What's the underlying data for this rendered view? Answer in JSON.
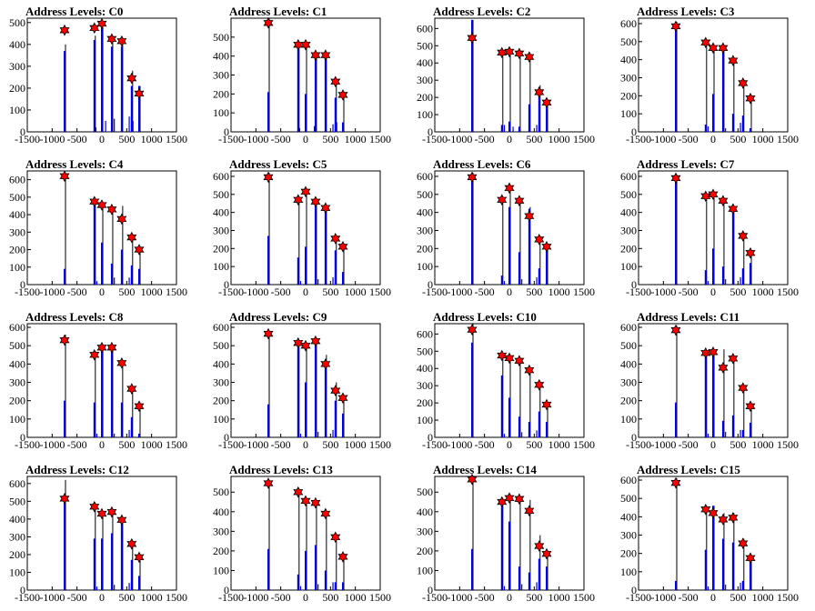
{
  "chart_data": [
    {
      "type": "bar",
      "title": "Address Levels: C0",
      "xlim": [
        -1500,
        1500
      ],
      "ylim": [
        0,
        520
      ],
      "yticks": [
        0,
        100,
        200,
        300,
        400,
        500
      ],
      "xticks": [
        -1500,
        -1000,
        -500,
        0,
        500,
        1000,
        1500
      ],
      "x": [
        -750,
        -150,
        0,
        200,
        400,
        600,
        750
      ],
      "values": [
        370,
        420,
        490,
        390,
        390,
        210,
        210
      ],
      "black_peaks": [
        400,
        440,
        500,
        420,
        410,
        280,
        210
      ],
      "star_values": [
        465,
        475,
        495,
        425,
        415,
        245,
        175
      ],
      "minor": [
        {
          "x": -120,
          "value": 20
        },
        {
          "x": 75,
          "value": 50
        },
        {
          "x": 250,
          "value": 60
        },
        {
          "x": 550,
          "value": 70
        },
        {
          "x": 625,
          "value": 50
        }
      ]
    },
    {
      "type": "bar",
      "title": "Address Levels: C1",
      "xlim": [
        -1500,
        1500
      ],
      "ylim": [
        0,
        600
      ],
      "yticks": [
        0,
        100,
        200,
        300,
        400,
        500
      ],
      "xticks": [
        -1500,
        -1000,
        -500,
        0,
        500,
        1000,
        1500
      ],
      "x": [
        -750,
        -150,
        0,
        200,
        400,
        600,
        750
      ],
      "values": [
        210,
        460,
        200,
        400,
        400,
        180,
        50
      ],
      "black_peaks": [
        600,
        470,
        470,
        420,
        420,
        280,
        200
      ],
      "star_values": [
        575,
        460,
        460,
        405,
        405,
        265,
        195
      ],
      "minor": [
        {
          "x": -120,
          "value": 20
        },
        {
          "x": 175,
          "value": 30
        },
        {
          "x": 550,
          "value": 40
        },
        {
          "x": 625,
          "value": 50
        }
      ]
    },
    {
      "type": "bar",
      "title": "Address Levels: C2",
      "xlim": [
        -1500,
        1500
      ],
      "ylim": [
        0,
        660
      ],
      "yticks": [
        0,
        100,
        200,
        300,
        400,
        500,
        600
      ],
      "xticks": [
        -1500,
        -1000,
        -500,
        0,
        500,
        1000,
        1500
      ],
      "x": [
        -750,
        -150,
        0,
        200,
        400,
        600,
        750
      ],
      "values": [
        650,
        40,
        60,
        30,
        160,
        260,
        160
      ],
      "black_peaks": [
        650,
        460,
        470,
        470,
        450,
        270,
        170
      ],
      "star_values": [
        545,
        460,
        465,
        455,
        435,
        230,
        170
      ],
      "minor": [
        {
          "x": -100,
          "value": 40
        },
        {
          "x": 75,
          "value": 30
        },
        {
          "x": 550,
          "value": 40
        }
      ]
    },
    {
      "type": "bar",
      "title": "Address Levels: C3",
      "xlim": [
        -1500,
        1500
      ],
      "ylim": [
        0,
        630
      ],
      "yticks": [
        0,
        100,
        200,
        300,
        400,
        500,
        600
      ],
      "xticks": [
        -1500,
        -1000,
        -500,
        0,
        500,
        1000,
        1500
      ],
      "x": [
        -750,
        -150,
        0,
        200,
        400,
        600,
        750
      ],
      "values": [
        610,
        40,
        210,
        440,
        100,
        90,
        20
      ],
      "black_peaks": [
        610,
        500,
        480,
        470,
        410,
        290,
        200
      ],
      "star_values": [
        585,
        495,
        465,
        465,
        395,
        270,
        185
      ],
      "minor": [
        {
          "x": -100,
          "value": 30
        },
        {
          "x": 250,
          "value": 20
        },
        {
          "x": 550,
          "value": 50
        }
      ]
    },
    {
      "type": "bar",
      "title": "Address Levels: C4",
      "xlim": [
        -1500,
        1500
      ],
      "ylim": [
        0,
        650
      ],
      "yticks": [
        0,
        100,
        200,
        300,
        400,
        500,
        600
      ],
      "xticks": [
        -1500,
        -1000,
        -500,
        0,
        500,
        1000,
        1500
      ],
      "x": [
        -750,
        -150,
        0,
        200,
        400,
        600,
        750
      ],
      "values": [
        90,
        450,
        240,
        120,
        200,
        110,
        90
      ],
      "black_peaks": [
        640,
        480,
        460,
        440,
        450,
        290,
        210
      ],
      "star_values": [
        620,
        475,
        455,
        430,
        375,
        270,
        200
      ],
      "minor": [
        {
          "x": -100,
          "value": 20
        },
        {
          "x": 250,
          "value": 40
        },
        {
          "x": 550,
          "value": 40
        }
      ]
    },
    {
      "type": "bar",
      "title": "Address Levels: C5",
      "xlim": [
        -1500,
        1500
      ],
      "ylim": [
        0,
        630
      ],
      "yticks": [
        0,
        100,
        200,
        300,
        400,
        500,
        600
      ],
      "xticks": [
        -1500,
        -1000,
        -500,
        0,
        500,
        1000,
        1500
      ],
      "x": [
        -750,
        -150,
        0,
        200,
        400,
        600,
        750
      ],
      "values": [
        270,
        150,
        210,
        450,
        410,
        190,
        70
      ],
      "black_peaks": [
        620,
        480,
        520,
        470,
        430,
        270,
        210
      ],
      "star_values": [
        595,
        470,
        515,
        460,
        425,
        255,
        210
      ],
      "minor": [
        {
          "x": -100,
          "value": 20
        },
        {
          "x": 250,
          "value": 30
        },
        {
          "x": 550,
          "value": 40
        }
      ]
    },
    {
      "type": "bar",
      "title": "Address Levels: C6",
      "xlim": [
        -1500,
        1500
      ],
      "ylim": [
        0,
        630
      ],
      "yticks": [
        0,
        100,
        200,
        300,
        400,
        500,
        600
      ],
      "xticks": [
        -1500,
        -1000,
        -500,
        0,
        500,
        1000,
        1500
      ],
      "x": [
        -750,
        -150,
        0,
        200,
        400,
        600,
        750
      ],
      "values": [
        600,
        50,
        430,
        180,
        420,
        90,
        200
      ],
      "black_peaks": [
        620,
        480,
        540,
        470,
        430,
        270,
        210
      ],
      "star_values": [
        595,
        470,
        535,
        465,
        380,
        250,
        210
      ],
      "minor": [
        {
          "x": -100,
          "value": 20
        },
        {
          "x": 250,
          "value": 30
        },
        {
          "x": 550,
          "value": 40
        }
      ]
    },
    {
      "type": "bar",
      "title": "Address Levels: C7",
      "xlim": [
        -1500,
        1500
      ],
      "ylim": [
        0,
        630
      ],
      "yticks": [
        0,
        100,
        200,
        300,
        400,
        500,
        600
      ],
      "xticks": [
        -1500,
        -1000,
        -500,
        0,
        500,
        1000,
        1500
      ],
      "x": [
        -750,
        -150,
        0,
        200,
        400,
        600,
        750
      ],
      "values": [
        610,
        80,
        200,
        100,
        420,
        90,
        120
      ],
      "black_peaks": [
        610,
        500,
        510,
        480,
        430,
        280,
        180
      ],
      "star_values": [
        590,
        490,
        500,
        465,
        420,
        270,
        175
      ],
      "minor": [
        {
          "x": -100,
          "value": 20
        },
        {
          "x": 250,
          "value": 30
        },
        {
          "x": 550,
          "value": 40
        }
      ]
    },
    {
      "type": "bar",
      "title": "Address Levels: C8",
      "xlim": [
        -1500,
        1500
      ],
      "ylim": [
        0,
        620
      ],
      "yticks": [
        0,
        100,
        200,
        300,
        400,
        500,
        600
      ],
      "xticks": [
        -1500,
        -1000,
        -500,
        0,
        500,
        1000,
        1500
      ],
      "x": [
        -750,
        -150,
        0,
        200,
        400,
        600,
        750
      ],
      "values": [
        200,
        190,
        470,
        490,
        190,
        110,
        20
      ],
      "black_peaks": [
        560,
        470,
        500,
        500,
        420,
        280,
        180
      ],
      "star_values": [
        530,
        450,
        490,
        490,
        405,
        265,
        170
      ],
      "minor": [
        {
          "x": -100,
          "value": 20
        },
        {
          "x": 250,
          "value": 20
        },
        {
          "x": 550,
          "value": 40
        }
      ]
    },
    {
      "type": "bar",
      "title": "Address Levels: C9",
      "xlim": [
        -1500,
        1500
      ],
      "ylim": [
        0,
        620
      ],
      "yticks": [
        0,
        100,
        200,
        300,
        400,
        500,
        600
      ],
      "xticks": [
        -1500,
        -1000,
        -500,
        0,
        500,
        1000,
        1500
      ],
      "x": [
        -750,
        -150,
        0,
        200,
        400,
        600,
        750
      ],
      "values": [
        180,
        490,
        300,
        500,
        400,
        200,
        130
      ],
      "black_peaks": [
        580,
        520,
        510,
        530,
        450,
        300,
        220
      ],
      "star_values": [
        565,
        515,
        500,
        525,
        400,
        255,
        215
      ],
      "minor": [
        {
          "x": -100,
          "value": 20
        },
        {
          "x": 250,
          "value": 30
        },
        {
          "x": 550,
          "value": 40
        }
      ]
    },
    {
      "type": "bar",
      "title": "Address Levels: C10",
      "xlim": [
        -1500,
        1500
      ],
      "ylim": [
        0,
        660
      ],
      "yticks": [
        0,
        100,
        200,
        300,
        400,
        500,
        600
      ],
      "xticks": [
        -1500,
        -1000,
        -500,
        0,
        500,
        1000,
        1500
      ],
      "x": [
        -750,
        -150,
        0,
        200,
        400,
        600,
        750
      ],
      "values": [
        550,
        360,
        230,
        120,
        90,
        150,
        90
      ],
      "black_peaks": [
        660,
        490,
        470,
        460,
        410,
        310,
        200
      ],
      "star_values": [
        625,
        475,
        460,
        445,
        390,
        305,
        190
      ],
      "minor": [
        {
          "x": -100,
          "value": 20
        },
        {
          "x": 250,
          "value": 30
        },
        {
          "x": 550,
          "value": 40
        }
      ]
    },
    {
      "type": "bar",
      "title": "Address Levels: C11",
      "xlim": [
        -1500,
        1500
      ],
      "ylim": [
        0,
        620
      ],
      "yticks": [
        0,
        100,
        200,
        300,
        400,
        500,
        600
      ],
      "xticks": [
        -1500,
        -1000,
        -500,
        0,
        500,
        1000,
        1500
      ],
      "x": [
        -750,
        -150,
        0,
        200,
        400,
        600,
        750
      ],
      "values": [
        190,
        460,
        480,
        90,
        120,
        40,
        80
      ],
      "black_peaks": [
        610,
        470,
        480,
        480,
        440,
        280,
        180
      ],
      "star_values": [
        585,
        460,
        465,
        380,
        430,
        270,
        170
      ],
      "minor": [
        {
          "x": -100,
          "value": 20
        },
        {
          "x": 250,
          "value": 30
        },
        {
          "x": 550,
          "value": 40
        }
      ]
    },
    {
      "type": "bar",
      "title": "Address Levels: C12",
      "xlim": [
        -1500,
        1500
      ],
      "ylim": [
        0,
        640
      ],
      "yticks": [
        0,
        100,
        200,
        300,
        400,
        500,
        600
      ],
      "xticks": [
        -1500,
        -1000,
        -500,
        0,
        500,
        1000,
        1500
      ],
      "x": [
        -750,
        -150,
        0,
        200,
        400,
        600,
        750
      ],
      "values": [
        510,
        290,
        290,
        320,
        380,
        170,
        80
      ],
      "black_peaks": [
        620,
        480,
        440,
        450,
        410,
        270,
        200
      ],
      "star_values": [
        515,
        470,
        430,
        440,
        395,
        260,
        185
      ],
      "minor": [
        {
          "x": -100,
          "value": 20
        },
        {
          "x": 250,
          "value": 30
        },
        {
          "x": 550,
          "value": 40
        }
      ]
    },
    {
      "type": "bar",
      "title": "Address Levels: C13",
      "xlim": [
        -1500,
        1500
      ],
      "ylim": [
        0,
        580
      ],
      "yticks": [
        0,
        100,
        200,
        300,
        400,
        500
      ],
      "xticks": [
        -1500,
        -1000,
        -500,
        0,
        500,
        1000,
        1500
      ],
      "x": [
        -750,
        -150,
        0,
        200,
        400,
        600,
        750
      ],
      "values": [
        210,
        80,
        200,
        230,
        100,
        40,
        40
      ],
      "black_peaks": [
        560,
        510,
        470,
        460,
        400,
        280,
        180
      ],
      "star_values": [
        545,
        500,
        455,
        445,
        390,
        270,
        170
      ],
      "minor": [
        {
          "x": -100,
          "value": 20
        },
        {
          "x": 250,
          "value": 30
        },
        {
          "x": 550,
          "value": 40
        }
      ]
    },
    {
      "type": "bar",
      "title": "Address Levels: C14",
      "xlim": [
        -1500,
        1500
      ],
      "ylim": [
        0,
        580
      ],
      "yticks": [
        0,
        100,
        200,
        300,
        400,
        500
      ],
      "xticks": [
        -1500,
        -1000,
        -500,
        0,
        500,
        1000,
        1500
      ],
      "x": [
        -750,
        -150,
        0,
        200,
        400,
        600,
        750
      ],
      "values": [
        210,
        450,
        350,
        120,
        90,
        160,
        120
      ],
      "black_peaks": [
        580,
        470,
        480,
        470,
        460,
        280,
        200
      ],
      "star_values": [
        565,
        450,
        470,
        465,
        405,
        225,
        185
      ],
      "minor": [
        {
          "x": -100,
          "value": 20
        },
        {
          "x": 250,
          "value": 30
        },
        {
          "x": 550,
          "value": 40
        }
      ]
    },
    {
      "type": "bar",
      "title": "Address Levels: C15",
      "xlim": [
        -1500,
        1500
      ],
      "ylim": [
        0,
        620
      ],
      "yticks": [
        0,
        100,
        200,
        300,
        400,
        500,
        600
      ],
      "xticks": [
        -1500,
        -1000,
        -500,
        0,
        500,
        1000,
        1500
      ],
      "x": [
        -750,
        -150,
        0,
        200,
        400,
        600,
        750
      ],
      "values": [
        50,
        220,
        460,
        280,
        260,
        50,
        150
      ],
      "black_peaks": [
        610,
        460,
        460,
        420,
        420,
        280,
        180
      ],
      "star_values": [
        585,
        440,
        420,
        385,
        395,
        255,
        175
      ],
      "minor": [
        {
          "x": -100,
          "value": 20
        },
        {
          "x": 250,
          "value": 30
        },
        {
          "x": 550,
          "value": 40
        }
      ]
    }
  ],
  "colors": {
    "bar": "#0000ee",
    "peak_line": "#000000",
    "marker_fill": "#ff0000",
    "marker_stroke": "#000000"
  }
}
